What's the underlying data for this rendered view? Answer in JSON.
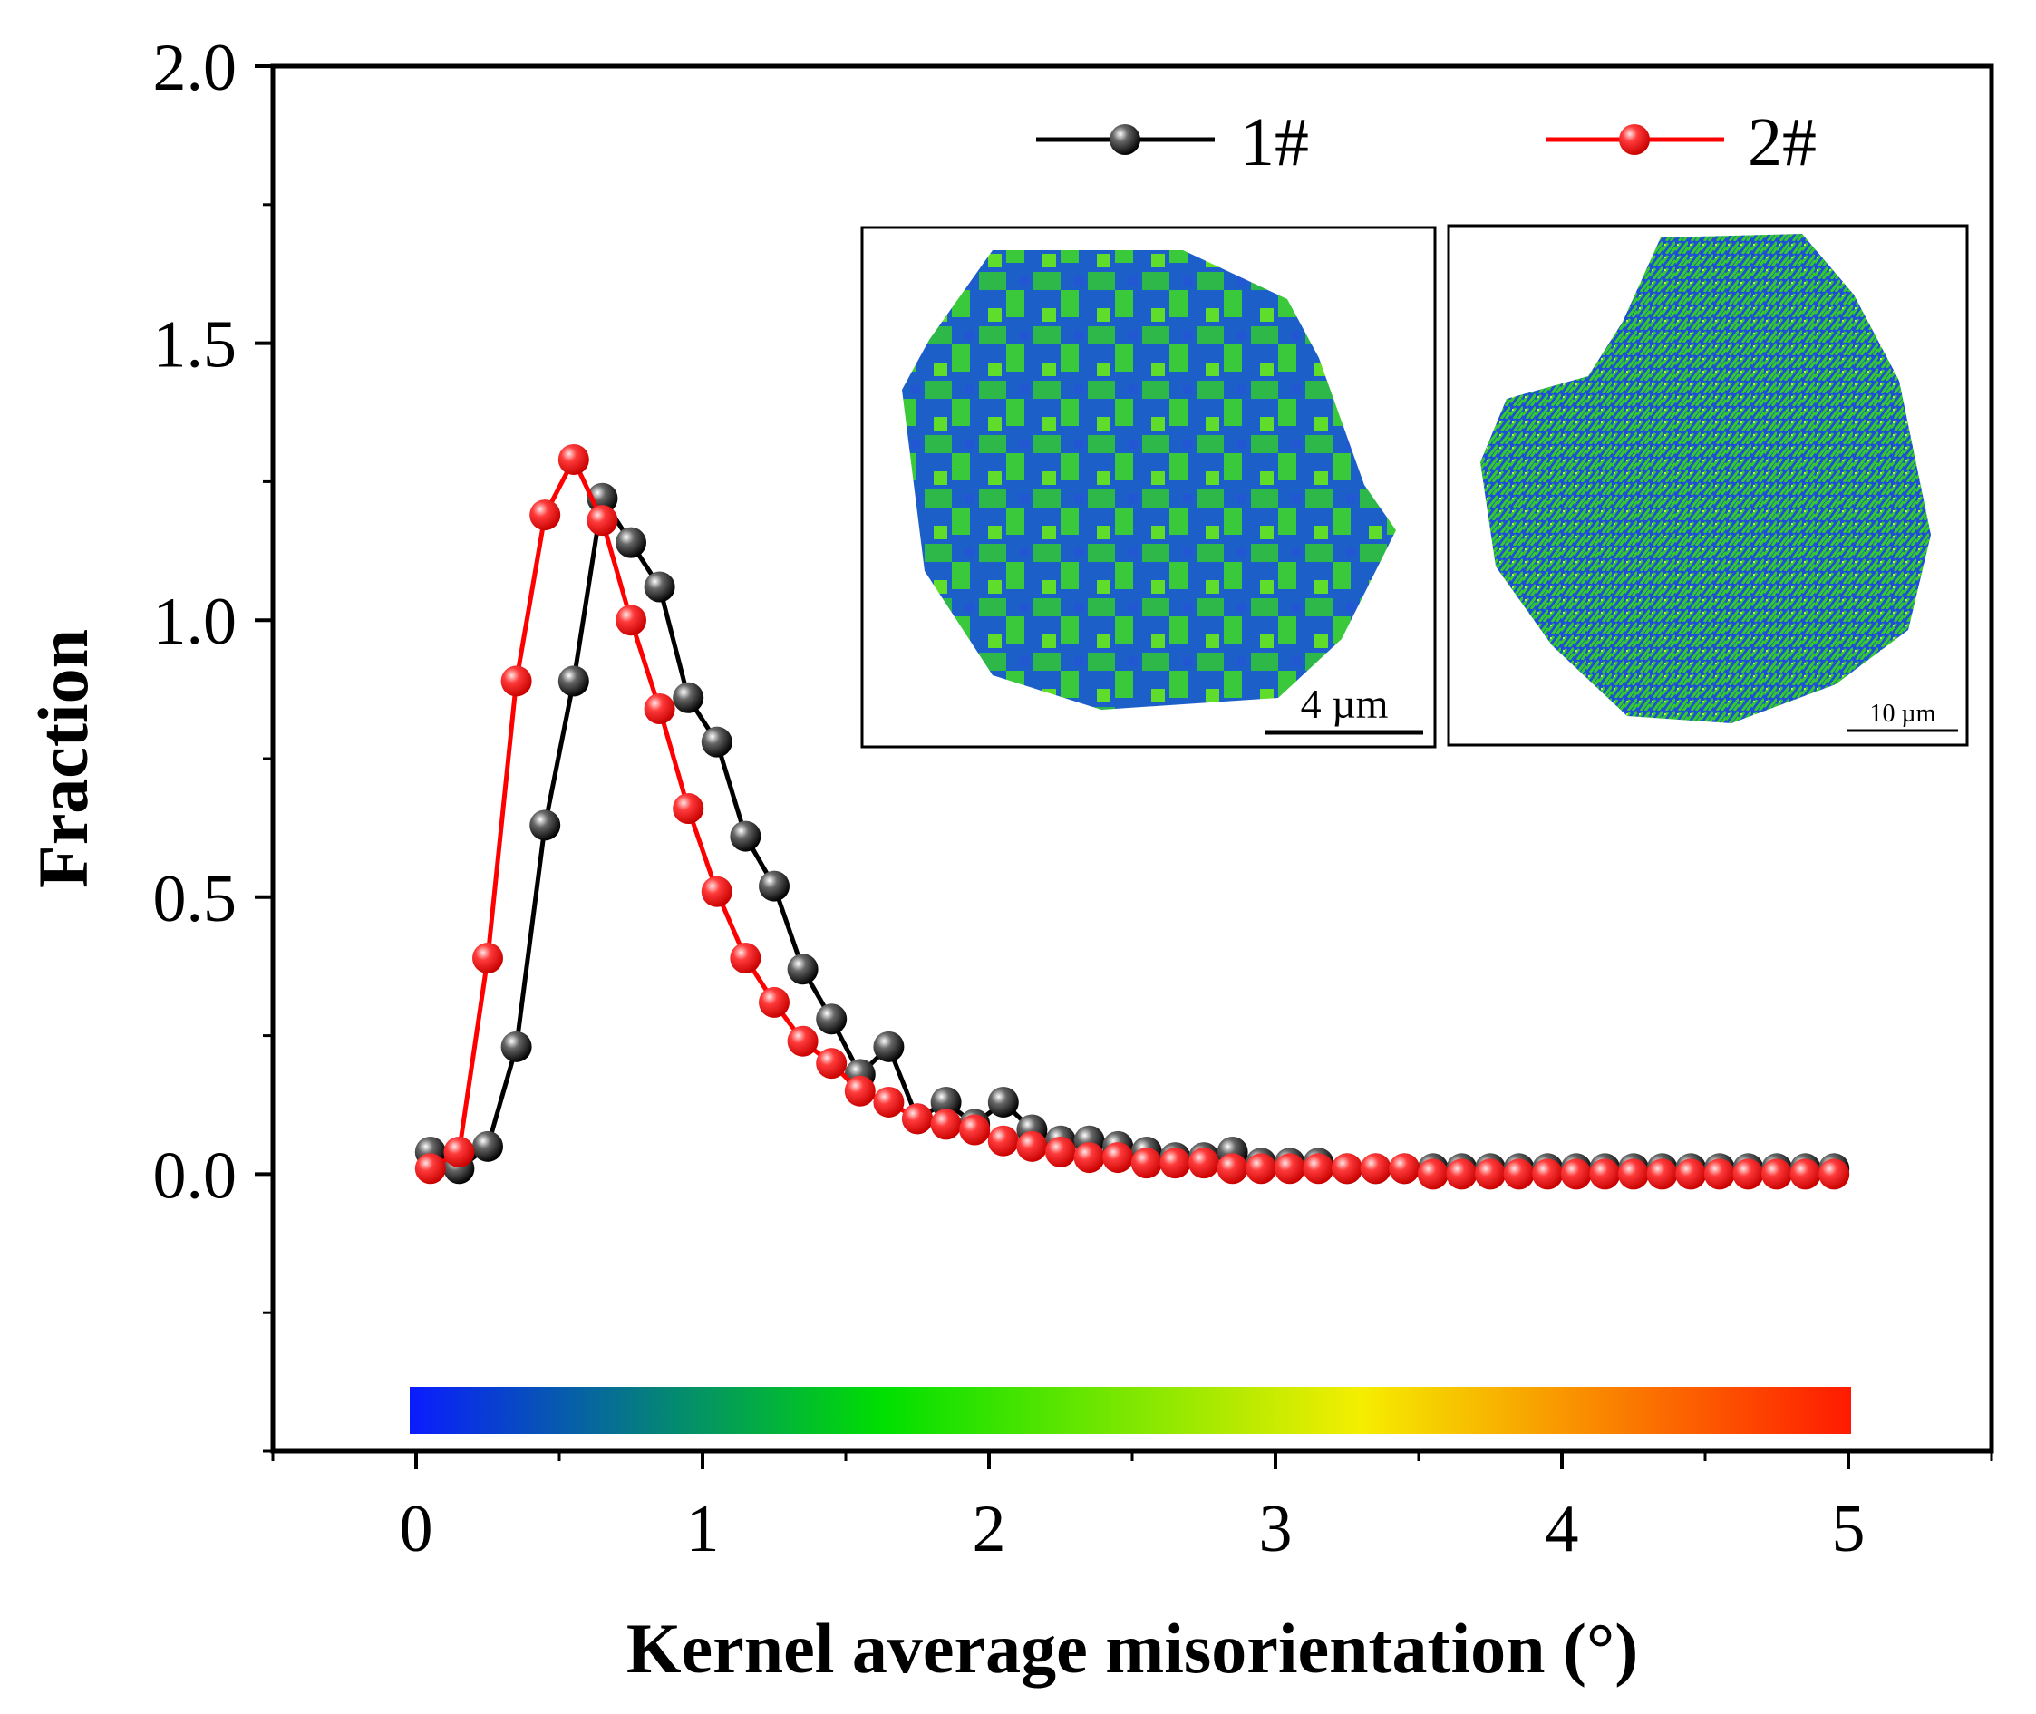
{
  "chart_data": {
    "type": "line",
    "title": "",
    "xlabel": "Kernel average misorientation (°)",
    "ylabel": "Fraction",
    "xlim": [
      -0.5,
      5.5
    ],
    "ylim": [
      -0.5,
      2.0
    ],
    "x_ticks": [
      0,
      1,
      2,
      3,
      4,
      5
    ],
    "x_tick_labels": [
      "0",
      "1",
      "2",
      "3",
      "4",
      "5"
    ],
    "y_ticks": [
      0.0,
      0.5,
      1.0,
      1.5,
      2.0
    ],
    "y_tick_labels": [
      "0.0",
      "0.5",
      "1.0",
      "1.5",
      "2.0"
    ],
    "grid": false,
    "legend_position": "top-right",
    "x": [
      0.05,
      0.15,
      0.25,
      0.35,
      0.45,
      0.55,
      0.65,
      0.75,
      0.85,
      0.95,
      1.05,
      1.15,
      1.25,
      1.35,
      1.45,
      1.55,
      1.65,
      1.75,
      1.85,
      1.95,
      2.05,
      2.15,
      2.25,
      2.35,
      2.45,
      2.55,
      2.65,
      2.75,
      2.85,
      2.95,
      3.05,
      3.15,
      3.25,
      3.35,
      3.45,
      3.55,
      3.65,
      3.75,
      3.85,
      3.95,
      4.05,
      4.15,
      4.25,
      4.35,
      4.45,
      4.55,
      4.65,
      4.75,
      4.85,
      4.95
    ],
    "series": [
      {
        "name": "1#",
        "color": "#000000",
        "values": [
          0.04,
          0.01,
          0.05,
          0.23,
          0.63,
          0.89,
          1.22,
          1.14,
          1.06,
          0.86,
          0.78,
          0.61,
          0.52,
          0.37,
          0.28,
          0.18,
          0.23,
          0.1,
          0.13,
          0.09,
          0.13,
          0.08,
          0.06,
          0.06,
          0.05,
          0.04,
          0.03,
          0.03,
          0.04,
          0.02,
          0.02,
          0.02,
          0.01,
          0.01,
          0.01,
          0.01,
          0.01,
          0.01,
          0.01,
          0.01,
          0.01,
          0.01,
          0.01,
          0.01,
          0.01,
          0.01,
          0.01,
          0.01,
          0.01,
          0.01
        ]
      },
      {
        "name": "2#",
        "color": "#ff0000",
        "values": [
          0.01,
          0.04,
          0.39,
          0.89,
          1.19,
          1.29,
          1.18,
          1.0,
          0.84,
          0.66,
          0.51,
          0.39,
          0.31,
          0.24,
          0.2,
          0.15,
          0.13,
          0.1,
          0.09,
          0.08,
          0.06,
          0.05,
          0.04,
          0.03,
          0.03,
          0.02,
          0.02,
          0.02,
          0.01,
          0.01,
          0.01,
          0.01,
          0.01,
          0.01,
          0.01,
          0.0,
          0.0,
          0.0,
          0.0,
          0.0,
          0.0,
          0.0,
          0.0,
          0.0,
          0.0,
          0.0,
          0.0,
          0.0,
          0.0,
          0.0
        ]
      }
    ],
    "colorbar": {
      "range": [
        0,
        5
      ],
      "colors": [
        "#0000ff",
        "#00ff00",
        "#ffff00",
        "#ff0000"
      ]
    },
    "insets": [
      {
        "name": "1#",
        "scale_bar_label": "4 µm"
      },
      {
        "name": "2#",
        "scale_bar_label": "10 µm"
      }
    ]
  }
}
